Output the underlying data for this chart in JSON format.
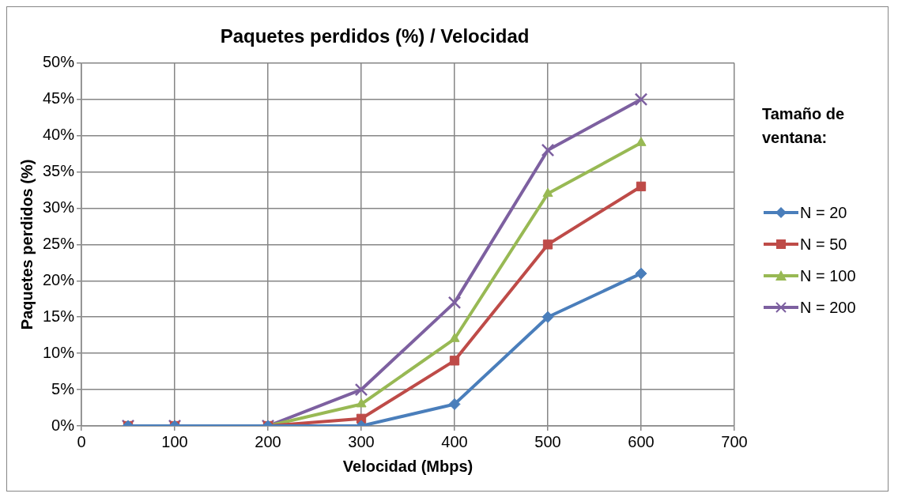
{
  "chart_data": {
    "type": "line",
    "title": "Paquetes perdidos (%) / Velocidad",
    "xlabel": "Velocidad (Mbps)",
    "ylabel": "Paquetes perdidos (%)",
    "legend_title": "Tamaño de ventana:",
    "x": [
      50,
      100,
      200,
      300,
      400,
      500,
      600
    ],
    "series": [
      {
        "name": "N = 20",
        "color": "#4a7ebb",
        "marker": "diamond",
        "values": [
          0,
          0,
          0,
          0,
          3,
          15,
          21
        ]
      },
      {
        "name": "N = 50",
        "color": "#be4b48",
        "marker": "square",
        "values": [
          0,
          0,
          0,
          1,
          9,
          25,
          33
        ]
      },
      {
        "name": "N = 100",
        "color": "#98b954",
        "marker": "triangle",
        "values": [
          0,
          0,
          0,
          3,
          12,
          32,
          39
        ]
      },
      {
        "name": "N = 200",
        "color": "#7d60a0",
        "marker": "cross",
        "values": [
          0,
          0,
          0,
          5,
          17,
          38,
          45
        ]
      }
    ],
    "xlim": [
      0,
      700
    ],
    "xticks": [
      0,
      100,
      200,
      300,
      400,
      500,
      600,
      700
    ],
    "ylim": [
      0,
      50
    ],
    "yticks": [
      {
        "value": 0,
        "label": "0%"
      },
      {
        "value": 5,
        "label": "5%"
      },
      {
        "value": 10,
        "label": "10%"
      },
      {
        "value": 15,
        "label": "15%"
      },
      {
        "value": 20,
        "label": "20%"
      },
      {
        "value": 25,
        "label": "25%"
      },
      {
        "value": 30,
        "label": "30%"
      },
      {
        "value": 35,
        "label": "35%"
      },
      {
        "value": 40,
        "label": "40%"
      },
      {
        "value": 45,
        "label": "45%"
      },
      {
        "value": 50,
        "label": "50%"
      }
    ],
    "grid": true,
    "legend": "right",
    "line_style": "solid"
  }
}
